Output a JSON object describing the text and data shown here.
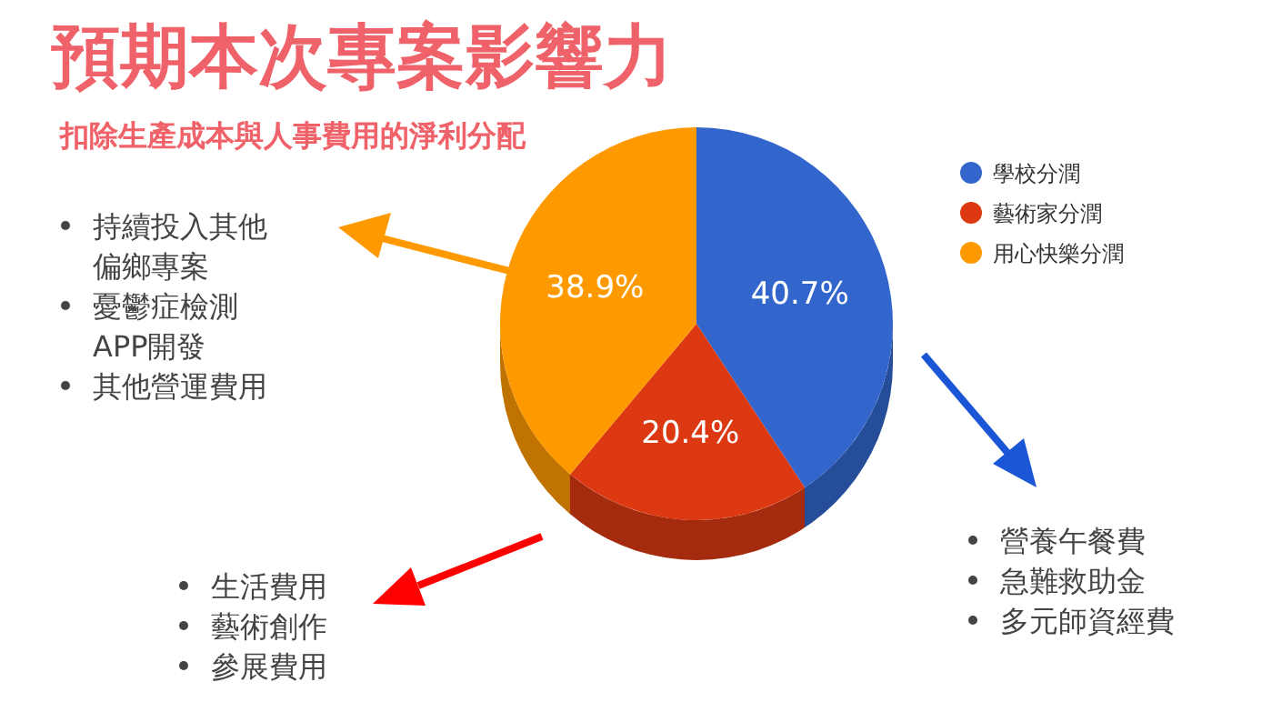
{
  "chart_data": {
    "type": "pie",
    "title": "預期本次專案影響力",
    "subtitle": "扣除生產成本與人事費用的淨利分配",
    "categories": [
      "學校分潤",
      "藝術家分潤",
      "用心快樂分潤"
    ],
    "values": [
      40.7,
      20.4,
      38.9
    ],
    "colors": [
      "#3366cc",
      "#dc3912",
      "#ff9900"
    ],
    "value_labels": [
      "40.7%",
      "20.4%",
      "38.9%"
    ],
    "legend": "right",
    "annotations": [
      "持續投入其他偏鄉專案",
      "憂鬱症檢測APP開發",
      "其他營運費用",
      "生活費用",
      "藝術創作",
      "參展費用",
      "營養午餐費",
      "急難救助金",
      "多元師資經費"
    ]
  }
}
